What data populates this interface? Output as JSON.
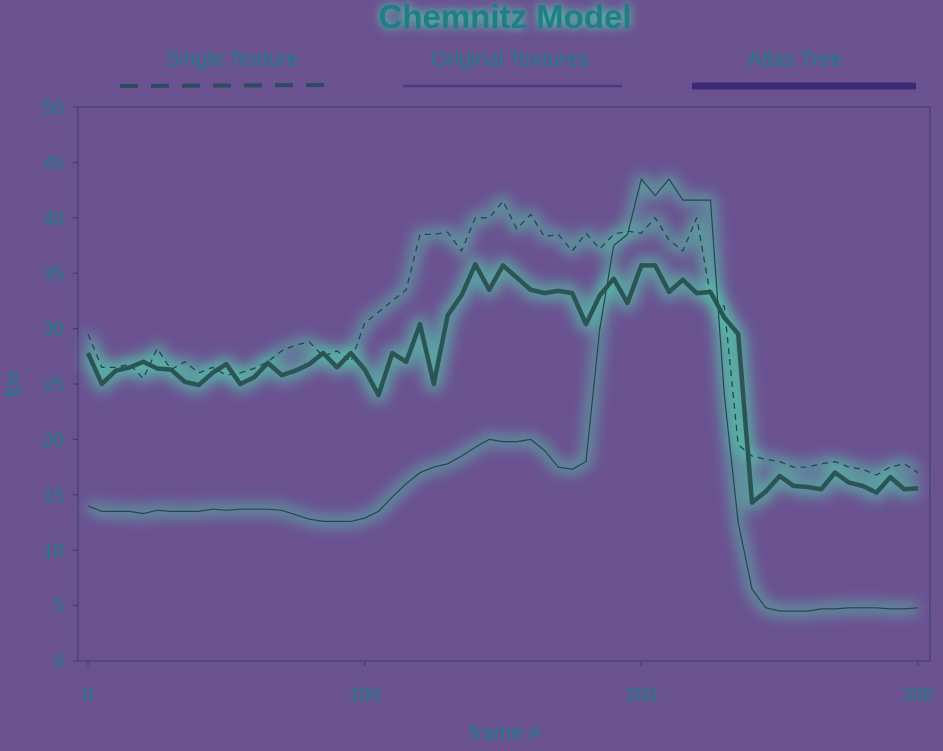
{
  "chart_data": {
    "type": "line",
    "title": "Chemnitz Model",
    "xlabel": "frame #",
    "ylabel": "fps",
    "xlim": [
      0,
      300
    ],
    "ylim": [
      0,
      50
    ],
    "xticks": [
      0,
      100,
      200,
      300
    ],
    "yticks": [
      0,
      5,
      10,
      15,
      20,
      25,
      30,
      35,
      40,
      45,
      50
    ],
    "legend_position": "top",
    "grid": false,
    "x": [
      0,
      5,
      10,
      15,
      20,
      25,
      30,
      35,
      40,
      45,
      50,
      55,
      60,
      65,
      70,
      75,
      80,
      85,
      90,
      95,
      100,
      105,
      110,
      115,
      120,
      125,
      130,
      135,
      140,
      145,
      150,
      155,
      160,
      165,
      170,
      175,
      180,
      185,
      190,
      195,
      200,
      205,
      210,
      215,
      220,
      225,
      230,
      235,
      240,
      245,
      250,
      255,
      260,
      265,
      270,
      275,
      280,
      285,
      290,
      295,
      300
    ],
    "series": [
      {
        "name": "Single Texture",
        "style": "dashed",
        "values": [
          29.5,
          26.5,
          26.5,
          26.8,
          25.5,
          28.2,
          26.3,
          27.0,
          26.0,
          26.5,
          25.8,
          26.0,
          26.4,
          27.0,
          28.0,
          28.5,
          28.8,
          27.5,
          28.0,
          27.0,
          30.5,
          31.5,
          32.5,
          33.5,
          38.5,
          38.5,
          38.7,
          37.0,
          40.0,
          40.0,
          41.5,
          39.0,
          40.3,
          38.3,
          38.5,
          37.0,
          38.6,
          37.2,
          38.5,
          38.8,
          38.6,
          40.0,
          38.0,
          37.0,
          40.0,
          33.0,
          32.0,
          19.5,
          18.5,
          18.2,
          18.0,
          17.5,
          17.5,
          17.8,
          18.0,
          17.5,
          17.3,
          16.8,
          17.5,
          17.8,
          17.0
        ]
      },
      {
        "name": "Original Textures",
        "style": "thin",
        "values": [
          14.0,
          13.5,
          13.5,
          13.5,
          13.3,
          13.6,
          13.5,
          13.5,
          13.5,
          13.7,
          13.6,
          13.7,
          13.7,
          13.7,
          13.6,
          13.2,
          12.8,
          12.6,
          12.6,
          12.6,
          12.9,
          13.5,
          14.8,
          16.0,
          17.0,
          17.5,
          17.8,
          18.5,
          19.3,
          20.0,
          19.8,
          19.8,
          20.0,
          19.0,
          17.5,
          17.3,
          18.0,
          30.0,
          37.5,
          38.5,
          43.5,
          42.0,
          43.5,
          41.6,
          41.6,
          41.6,
          24.0,
          12.5,
          6.5,
          4.8,
          4.5,
          4.5,
          4.5,
          4.7,
          4.7,
          4.8,
          4.8,
          4.8,
          4.7,
          4.7,
          4.8
        ]
      },
      {
        "name": "Atlas Tree",
        "style": "thick",
        "values": [
          27.8,
          25.0,
          26.2,
          26.5,
          27.0,
          26.4,
          26.3,
          25.2,
          24.9,
          26.0,
          26.8,
          25.0,
          25.6,
          26.9,
          25.8,
          26.2,
          26.8,
          27.8,
          26.5,
          27.8,
          26.3,
          24.0,
          27.8,
          27.0,
          30.4,
          25.0,
          31.2,
          33.0,
          35.8,
          33.5,
          35.7,
          34.6,
          33.5,
          33.2,
          33.4,
          33.2,
          30.4,
          33.0,
          34.5,
          32.3,
          35.7,
          35.7,
          33.3,
          34.4,
          33.2,
          33.3,
          31.0,
          29.5,
          14.3,
          15.3,
          16.7,
          15.8,
          15.7,
          15.5,
          17.0,
          16.1,
          15.8,
          15.2,
          16.6,
          15.5,
          15.6
        ]
      }
    ]
  },
  "colors": {
    "background": "#6a5291",
    "glow": "#4fe3b0",
    "line_dark": "#24474e",
    "atlas_line": "#2b5454",
    "axis": "#3d3a6e",
    "text": "#1f7e86",
    "legend_atlas": "#3a2a72",
    "legend_original": "#4a3a86",
    "legend_single": "#2d4a5e"
  }
}
